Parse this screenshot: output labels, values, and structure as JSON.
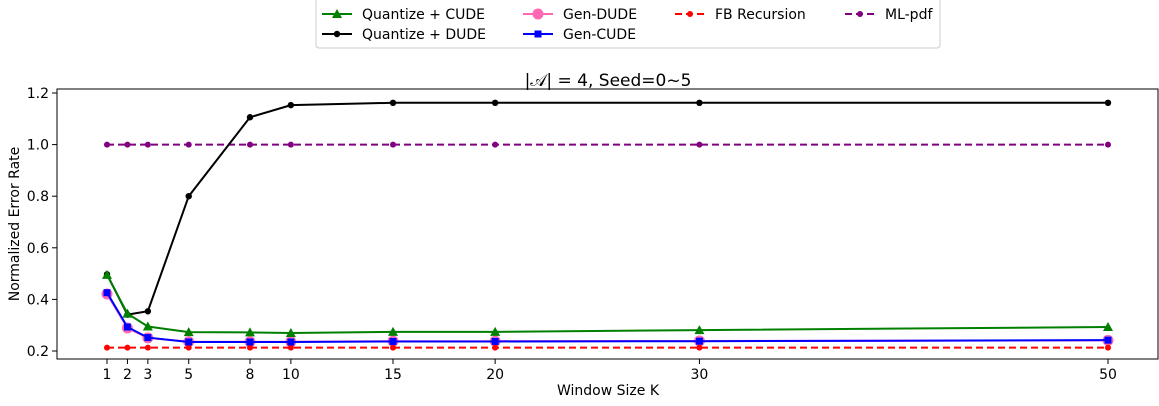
{
  "chart_data": {
    "type": "line",
    "title": "|𝒜| = 4, Seed=0~5",
    "xlabel": "Window Size K",
    "ylabel": "Normalized Error Rate",
    "x": [
      1,
      2,
      3,
      5,
      8,
      10,
      15,
      20,
      30,
      50
    ],
    "x_ticks": [
      "1",
      "2",
      "3",
      "5",
      "8",
      "10",
      "15",
      "20",
      "30",
      "50"
    ],
    "xlim": [
      0,
      52
    ],
    "ylim": [
      0.17,
      1.22
    ],
    "y_ticks": [
      "0.2",
      "0.4",
      "0.6",
      "0.8",
      "1.0",
      "1.2"
    ],
    "grid": false,
    "legend_position": "top-center",
    "series": [
      {
        "name": "Quantize + CUDE",
        "color": "#008000",
        "marker": "triangle",
        "line": "solid",
        "values": [
          0.495,
          0.345,
          0.295,
          0.273,
          0.272,
          0.27,
          0.274,
          0.274,
          0.281,
          0.293
        ]
      },
      {
        "name": "Quantize + DUDE",
        "color": "#000000",
        "marker": "circle",
        "line": "solid",
        "values": [
          0.497,
          0.341,
          0.354,
          0.8,
          1.106,
          1.153,
          1.162,
          1.162,
          1.162,
          1.162
        ]
      },
      {
        "name": "Gen-DUDE",
        "color": "#ff69b4",
        "marker": "circle-large",
        "line": "solid",
        "values": [
          0.421,
          0.289,
          0.251,
          0.236,
          0.236,
          0.236,
          0.238,
          0.238,
          0.239,
          0.241
        ]
      },
      {
        "name": "Gen-CUDE",
        "color": "#0000ff",
        "marker": "square",
        "line": "solid",
        "values": [
          0.426,
          0.293,
          0.252,
          0.235,
          0.235,
          0.235,
          0.237,
          0.237,
          0.238,
          0.242
        ]
      },
      {
        "name": "FB Recursion",
        "color": "#ff0000",
        "marker": "circle",
        "line": "dashed",
        "values": [
          0.213,
          0.213,
          0.213,
          0.213,
          0.213,
          0.213,
          0.213,
          0.213,
          0.213,
          0.213
        ]
      },
      {
        "name": "ML-pdf",
        "color": "#800080",
        "marker": "circle",
        "line": "dashed",
        "values": [
          1.0,
          1.0,
          1.0,
          1.0,
          1.0,
          1.0,
          1.0,
          1.0,
          1.0,
          1.0
        ]
      }
    ]
  }
}
